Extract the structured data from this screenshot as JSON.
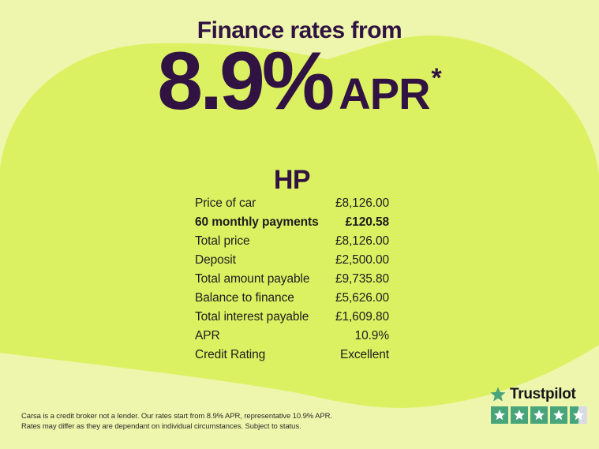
{
  "colors": {
    "bg_light": "#edf6ac",
    "blob_lime": "#dcf162",
    "accent_purple": "#311343",
    "table_text": "#1d1d1d",
    "disclaimer_text": "#2d2d28",
    "trustpilot_green": "#48a57b",
    "trustpilot_half_gray": "#d9dbe4",
    "trustpilot_text": "#16161a"
  },
  "header": {
    "title": "Finance rates from",
    "rate": "8.9%",
    "rate_unit": "APR",
    "rate_note_symbol": "*"
  },
  "finance_table": {
    "title": "HP",
    "rows": [
      {
        "label": "Price of car",
        "value": "£8,126.00",
        "bold": false
      },
      {
        "label": "60 monthly payments",
        "value": "£120.58",
        "bold": true
      },
      {
        "label": "Total price",
        "value": "£8,126.00",
        "bold": false
      },
      {
        "label": "Deposit",
        "value": "£2,500.00",
        "bold": false
      },
      {
        "label": "Total amount payable",
        "value": "£9,735.80",
        "bold": false
      },
      {
        "label": "Balance to finance",
        "value": "£5,626.00",
        "bold": false
      },
      {
        "label": "Total interest payable",
        "value": "£1,609.80",
        "bold": false
      },
      {
        "label": "APR",
        "value": "10.9%",
        "bold": false
      },
      {
        "label": "Credit Rating",
        "value": "Excellent",
        "bold": false
      }
    ]
  },
  "disclaimer": {
    "line1": "Carsa is a credit broker not a lender. Our rates start from 8.9% APR, representative 10.9% APR.",
    "line2": "Rates may differ as they are dependant on individual circumstances. Subject to status."
  },
  "trustpilot": {
    "brand": "Trustpilot",
    "rating_stars": 4.5
  }
}
